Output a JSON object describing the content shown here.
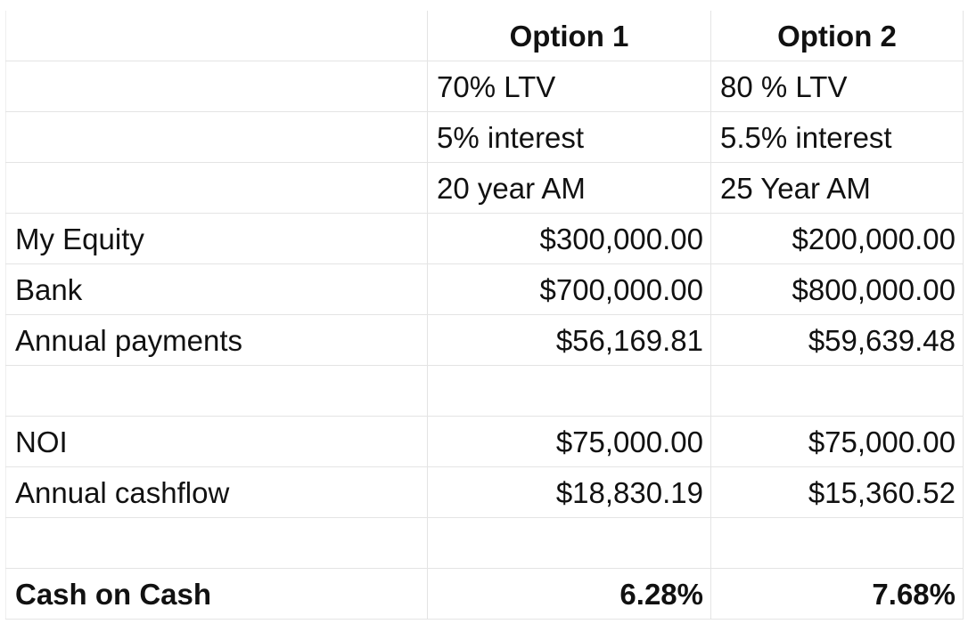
{
  "header": {
    "option1": "Option 1",
    "option2": "Option 2"
  },
  "terms": [
    {
      "option1": "70% LTV",
      "option2": "80 % LTV"
    },
    {
      "option1": "5% interest",
      "option2": "5.5% interest"
    },
    {
      "option1": "20 year AM",
      "option2": "25 Year AM"
    }
  ],
  "rows": {
    "equity": {
      "label": "My Equity",
      "option1": "$300,000.00",
      "option2": "$200,000.00"
    },
    "bank": {
      "label": "Bank",
      "option1": "$700,000.00",
      "option2": "$800,000.00"
    },
    "payments": {
      "label": "Annual payments",
      "option1": "$56,169.81",
      "option2": "$59,639.48"
    },
    "noi": {
      "label": "NOI",
      "option1": "$75,000.00",
      "option2": "$75,000.00"
    },
    "cashflow": {
      "label": "Annual cashflow",
      "option1": "$18,830.19",
      "option2": "$15,360.52"
    },
    "coc": {
      "label": "Cash on Cash",
      "option1": "6.28%",
      "option2": "7.68%"
    }
  }
}
